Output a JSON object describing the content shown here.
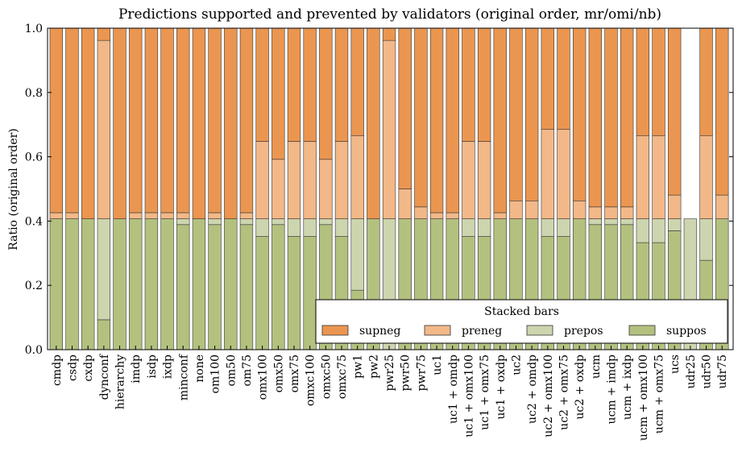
{
  "chart_data": {
    "type": "bar",
    "stacked": true,
    "title": "Predictions supported and prevented by validators (original order, mr/omi/nb)",
    "xlabel": "",
    "ylabel": "Ratio (original order)",
    "ylim": [
      0,
      1.0
    ],
    "yticks": [
      "0.0",
      "0.2",
      "0.4",
      "0.6",
      "0.8",
      "1.0"
    ],
    "grid": false,
    "legend": {
      "title": "Stacked bars",
      "placement": "lower-right"
    },
    "categories": [
      "cmdp",
      "csdp",
      "cxdp",
      "dynconf",
      "hierarchy",
      "imdp",
      "isdp",
      "ixdp",
      "minconf",
      "none",
      "om100",
      "om50",
      "om75",
      "omx100",
      "omx50",
      "omx75",
      "omxc100",
      "omxc50",
      "omxc75",
      "pw1",
      "pw2",
      "pwr25",
      "pwr50",
      "pwr75",
      "uc1",
      "uc1 + omdp",
      "uc1 + omx100",
      "uc1 + omx75",
      "uc1 + oxdp",
      "uc2",
      "uc2 + omdp",
      "uc2 + omx100",
      "uc2 + omx75",
      "uc2 + oxdp",
      "ucm",
      "ucm + imdp",
      "ucm + ixdp",
      "ucm + omx100",
      "ucm + omx75",
      "ucs",
      "udr25",
      "udr50",
      "udr75"
    ],
    "series": [
      {
        "name": "suppos",
        "color": "#b3c17f",
        "values": [
          0.407,
          0.407,
          0.407,
          0.093,
          0.407,
          0.407,
          0.407,
          0.407,
          0.389,
          0.407,
          0.389,
          0.407,
          0.389,
          0.352,
          0.389,
          0.352,
          0.352,
          0.389,
          0.352,
          0.185,
          0.407,
          0.0,
          0.407,
          0.407,
          0.407,
          0.407,
          0.352,
          0.352,
          0.407,
          0.407,
          0.407,
          0.352,
          0.352,
          0.407,
          0.389,
          0.389,
          0.389,
          0.333,
          0.333,
          0.37,
          0.0,
          0.278,
          0.407
        ]
      },
      {
        "name": "prepos",
        "color": "#ccd5ae",
        "values": [
          0.0,
          0.0,
          0.0,
          0.314,
          0.0,
          0.0,
          0.0,
          0.0,
          0.018,
          0.0,
          0.018,
          0.0,
          0.018,
          0.055,
          0.018,
          0.055,
          0.055,
          0.018,
          0.055,
          0.222,
          0.0,
          0.407,
          0.0,
          0.0,
          0.0,
          0.0,
          0.055,
          0.055,
          0.0,
          0.0,
          0.0,
          0.055,
          0.055,
          0.0,
          0.018,
          0.018,
          0.018,
          0.074,
          0.074,
          0.037,
          0.407,
          0.129,
          0.0
        ]
      },
      {
        "name": "preneg",
        "color": "#f2b888",
        "values": [
          0.019,
          0.019,
          0.0,
          0.555,
          0.0,
          0.019,
          0.019,
          0.019,
          0.019,
          0.0,
          0.019,
          0.0,
          0.019,
          0.241,
          0.185,
          0.241,
          0.241,
          0.185,
          0.241,
          0.259,
          0.0,
          0.555,
          0.093,
          0.037,
          0.019,
          0.019,
          0.241,
          0.241,
          0.019,
          0.056,
          0.056,
          0.278,
          0.278,
          0.056,
          0.037,
          0.037,
          0.037,
          0.259,
          0.259,
          0.074,
          0.0,
          0.259,
          0.074
        ]
      },
      {
        "name": "supneg",
        "color": "#eb9650",
        "values": [
          0.574,
          0.574,
          0.593,
          0.038,
          0.593,
          0.574,
          0.574,
          0.574,
          0.574,
          0.593,
          0.574,
          0.593,
          0.574,
          0.352,
          0.408,
          0.352,
          0.352,
          0.408,
          0.352,
          0.334,
          0.593,
          0.038,
          0.5,
          0.556,
          0.574,
          0.574,
          0.352,
          0.352,
          0.574,
          0.537,
          0.537,
          0.315,
          0.315,
          0.537,
          0.556,
          0.556,
          0.556,
          0.334,
          0.334,
          0.519,
          0.0,
          0.334,
          0.519
        ]
      }
    ],
    "legend_order": [
      "supneg",
      "preneg",
      "prepos",
      "suppos"
    ]
  }
}
